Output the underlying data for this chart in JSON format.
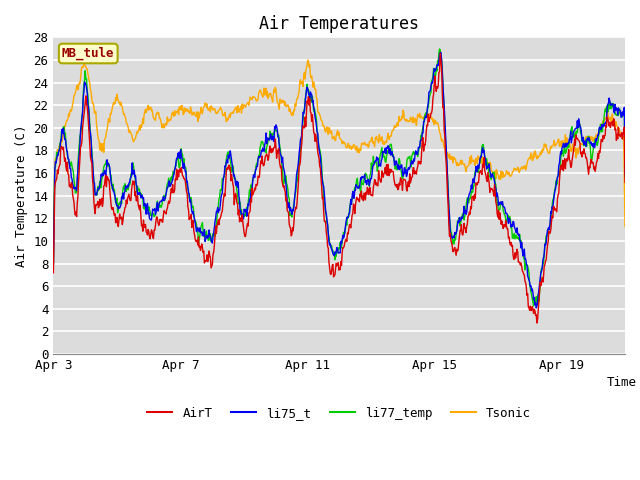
{
  "title": "Air Temperatures",
  "xlabel": "Time",
  "ylabel": "Air Temperature (C)",
  "ylim": [
    0,
    28
  ],
  "yticks": [
    0,
    2,
    4,
    6,
    8,
    10,
    12,
    14,
    16,
    18,
    20,
    22,
    24,
    26,
    28
  ],
  "plot_bg_color": "#dcdcdc",
  "line_colors": {
    "AirT": "#dd0000",
    "li75_t": "#0000ee",
    "li77_temp": "#00cc00",
    "Tsonic": "#ffaa00"
  },
  "legend_label": "MB_tule",
  "legend_box_color": "#ffffcc",
  "legend_box_edge": "#aaa800",
  "legend_text_color": "#990000",
  "x_tick_labels": [
    "Apr 3",
    "Apr 7",
    "Apr 11",
    "Apr 15",
    "Apr 19"
  ],
  "font_family": "monospace"
}
